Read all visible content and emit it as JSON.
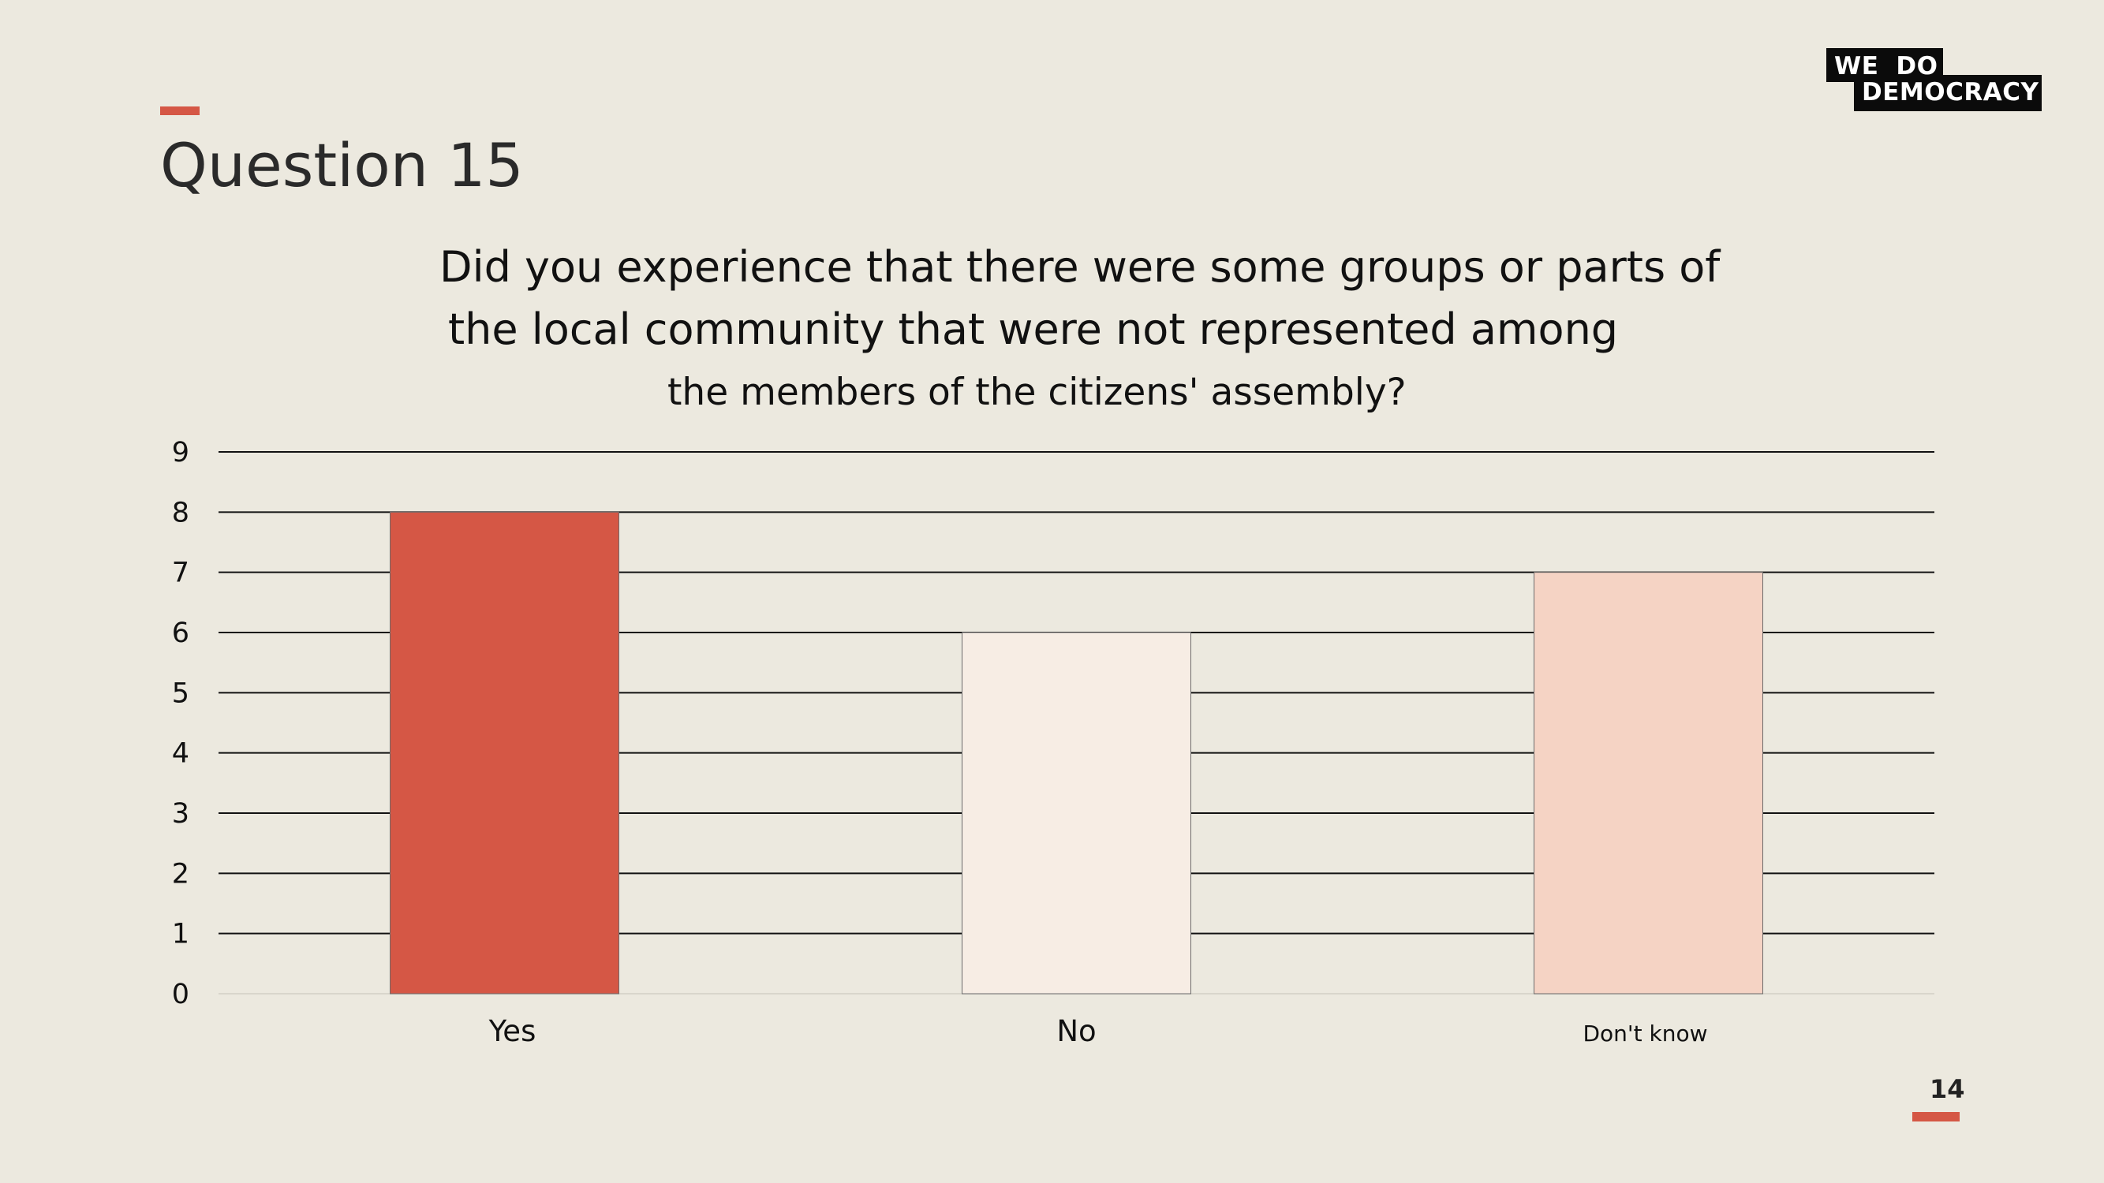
{
  "slide": {
    "title": "Question 15",
    "page_number": "14",
    "question_lines": [
      "Did you experience that there were some groups or parts of",
      "the local community that were not represented among",
      "the members of the citizens' assembly?"
    ],
    "accent_color": "#D55745",
    "background_color": "#ECE9DF"
  },
  "logo": {
    "line1_a": "WE",
    "line1_b": "DO",
    "line2": "DEMOCRACY"
  },
  "chart_data": {
    "type": "bar",
    "categories": [
      "Yes",
      "No",
      "Don't know"
    ],
    "values": [
      8,
      6,
      7
    ],
    "colors": [
      "#D55745",
      "#F7EDE4",
      "#F5D3C4"
    ],
    "ylim": [
      0,
      9
    ],
    "yticks": [
      0,
      1,
      2,
      3,
      4,
      5,
      6,
      7,
      8,
      9
    ],
    "grid": true,
    "legend": "none"
  }
}
